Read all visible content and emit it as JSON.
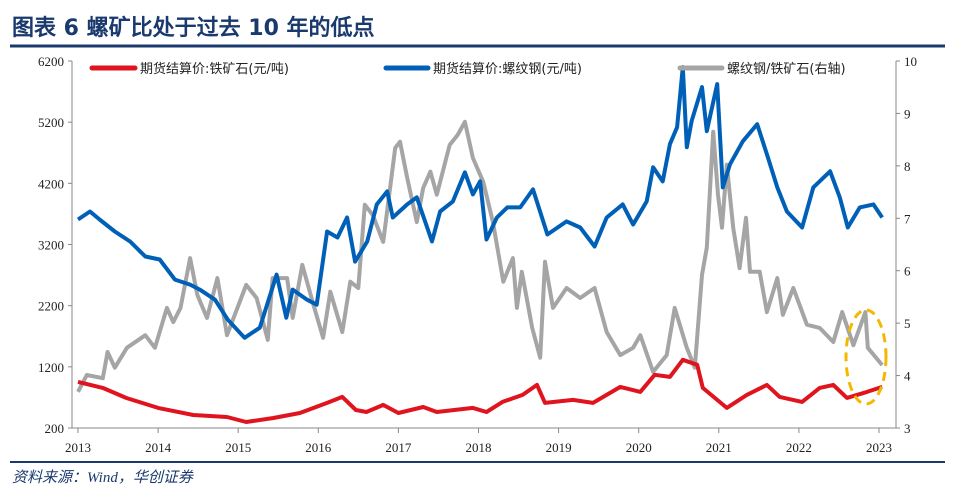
{
  "header": {
    "title": "图表 6  螺矿比处于过去 10 年的低点"
  },
  "footer": {
    "source": "资料来源：Wind，华创证券"
  },
  "colors": {
    "iron_ore": "#e0141e",
    "rebar": "#0060b8",
    "ratio": "#a5a5a5",
    "accent": "#1a3a6e",
    "highlight": "#f5b800"
  },
  "chart_data": {
    "type": "line",
    "title": "螺矿比处于过去 10 年的低点",
    "xlabel": "",
    "ylabel": "",
    "y2label": "",
    "xlim": [
      2013,
      2023
    ],
    "ylim": [
      200,
      6200
    ],
    "y2lim": [
      3,
      10
    ],
    "x_ticks": [
      "2013",
      "2014",
      "2015",
      "2016",
      "2017",
      "2018",
      "2019",
      "2020",
      "2021",
      "2022",
      "2023"
    ],
    "y_ticks": [
      "200",
      "1200",
      "2200",
      "3200",
      "4200",
      "5200",
      "6200"
    ],
    "y2_ticks": [
      "3",
      "4",
      "5",
      "6",
      "7",
      "8",
      "9",
      "10"
    ],
    "legend_position": "top",
    "annotation": "dashed ellipse highlighting latest ratio low",
    "series": [
      {
        "name": "期货结算价:铁矿石(元/吨)",
        "axis": "left",
        "color": "#e0141e",
        "points": [
          [
            2013.0,
            954
          ],
          [
            2013.31,
            856
          ],
          [
            2013.6,
            692
          ],
          [
            2014.0,
            528
          ],
          [
            2014.44,
            413
          ],
          [
            2014.86,
            380
          ],
          [
            2015.1,
            298
          ],
          [
            2015.44,
            364
          ],
          [
            2015.77,
            446
          ],
          [
            2016.11,
            610
          ],
          [
            2016.3,
            708
          ],
          [
            2016.47,
            495
          ],
          [
            2016.6,
            462
          ],
          [
            2016.81,
            577
          ],
          [
            2017.0,
            446
          ],
          [
            2017.31,
            544
          ],
          [
            2017.48,
            462
          ],
          [
            2017.93,
            528
          ],
          [
            2018.1,
            462
          ],
          [
            2018.3,
            626
          ],
          [
            2018.55,
            741
          ],
          [
            2018.73,
            905
          ],
          [
            2018.83,
            610
          ],
          [
            2019.18,
            659
          ],
          [
            2019.43,
            610
          ],
          [
            2019.77,
            872
          ],
          [
            2020.02,
            790
          ],
          [
            2020.2,
            1069
          ],
          [
            2020.39,
            1036
          ],
          [
            2020.55,
            1315
          ],
          [
            2020.73,
            1233
          ],
          [
            2020.8,
            856
          ],
          [
            2021.01,
            626
          ],
          [
            2021.1,
            528
          ],
          [
            2021.35,
            741
          ],
          [
            2021.6,
            905
          ],
          [
            2021.76,
            708
          ],
          [
            2022.04,
            626
          ],
          [
            2022.26,
            856
          ],
          [
            2022.43,
            905
          ],
          [
            2022.6,
            692
          ],
          [
            2022.85,
            790
          ],
          [
            2023.04,
            872
          ]
        ]
      },
      {
        "name": "期货结算价:螺纹钢(元/吨)",
        "axis": "left",
        "color": "#0060b8",
        "points": [
          [
            2013.0,
            3609
          ],
          [
            2013.15,
            3740
          ],
          [
            2013.27,
            3609
          ],
          [
            2013.46,
            3412
          ],
          [
            2013.65,
            3249
          ],
          [
            2013.84,
            3003
          ],
          [
            2014.02,
            2954
          ],
          [
            2014.21,
            2626
          ],
          [
            2014.4,
            2544
          ],
          [
            2014.52,
            2462
          ],
          [
            2014.71,
            2298
          ],
          [
            2014.87,
            1970
          ],
          [
            2015.08,
            1675
          ],
          [
            2015.27,
            1839
          ],
          [
            2015.48,
            2708
          ],
          [
            2015.6,
            2003
          ],
          [
            2015.68,
            2462
          ],
          [
            2015.86,
            2298
          ],
          [
            2015.98,
            2216
          ],
          [
            2016.11,
            3413
          ],
          [
            2016.24,
            3314
          ],
          [
            2016.36,
            3642
          ],
          [
            2016.46,
            2921
          ],
          [
            2016.61,
            3249
          ],
          [
            2016.73,
            3855
          ],
          [
            2016.86,
            4068
          ],
          [
            2016.93,
            3642
          ],
          [
            2017.11,
            3855
          ],
          [
            2017.23,
            3970
          ],
          [
            2017.42,
            3249
          ],
          [
            2017.52,
            3740
          ],
          [
            2017.68,
            3904
          ],
          [
            2017.83,
            4380
          ],
          [
            2017.93,
            4019
          ],
          [
            2018.02,
            4232
          ],
          [
            2018.1,
            3281
          ],
          [
            2018.23,
            3642
          ],
          [
            2018.36,
            3806
          ],
          [
            2018.52,
            3806
          ],
          [
            2018.68,
            4101
          ],
          [
            2018.86,
            3363
          ],
          [
            2019.1,
            3577
          ],
          [
            2019.27,
            3478
          ],
          [
            2019.45,
            3167
          ],
          [
            2019.6,
            3642
          ],
          [
            2019.8,
            3855
          ],
          [
            2019.93,
            3527
          ],
          [
            2020.1,
            3904
          ],
          [
            2020.18,
            4462
          ],
          [
            2020.3,
            4232
          ],
          [
            2020.39,
            4839
          ],
          [
            2020.48,
            5117
          ],
          [
            2020.55,
            6100
          ],
          [
            2020.6,
            4790
          ],
          [
            2020.66,
            5216
          ],
          [
            2020.79,
            5773
          ],
          [
            2020.85,
            5052
          ],
          [
            2020.98,
            5822
          ],
          [
            2021.05,
            4134
          ],
          [
            2021.14,
            4511
          ],
          [
            2021.3,
            4888
          ],
          [
            2021.48,
            5166
          ],
          [
            2021.6,
            4675
          ],
          [
            2021.73,
            4134
          ],
          [
            2021.85,
            3740
          ],
          [
            2022.04,
            3478
          ],
          [
            2022.18,
            4134
          ],
          [
            2022.39,
            4396
          ],
          [
            2022.51,
            3970
          ],
          [
            2022.61,
            3478
          ],
          [
            2022.76,
            3806
          ],
          [
            2022.93,
            3855
          ],
          [
            2023.04,
            3642
          ]
        ]
      },
      {
        "name": "螺纹钢/铁矿石(右轴)",
        "axis": "right",
        "color": "#a5a5a5",
        "points": [
          [
            2013.0,
            3.69
          ],
          [
            2013.11,
            4.01
          ],
          [
            2013.31,
            3.95
          ],
          [
            2013.37,
            4.45
          ],
          [
            2013.46,
            4.15
          ],
          [
            2013.61,
            4.53
          ],
          [
            2013.84,
            4.77
          ],
          [
            2013.96,
            4.53
          ],
          [
            2014.11,
            5.29
          ],
          [
            2014.19,
            5.02
          ],
          [
            2014.28,
            5.29
          ],
          [
            2014.4,
            6.24
          ],
          [
            2014.49,
            5.54
          ],
          [
            2014.61,
            5.1
          ],
          [
            2014.74,
            5.86
          ],
          [
            2014.86,
            4.77
          ],
          [
            2015.1,
            5.73
          ],
          [
            2015.23,
            5.48
          ],
          [
            2015.37,
            4.68
          ],
          [
            2015.43,
            5.86
          ],
          [
            2015.61,
            5.86
          ],
          [
            2015.68,
            5.1
          ],
          [
            2015.8,
            6.11
          ],
          [
            2015.93,
            5.4
          ],
          [
            2016.06,
            4.72
          ],
          [
            2016.15,
            5.6
          ],
          [
            2016.3,
            4.83
          ],
          [
            2016.4,
            5.79
          ],
          [
            2016.5,
            5.67
          ],
          [
            2016.58,
            7.26
          ],
          [
            2016.68,
            7.06
          ],
          [
            2016.81,
            6.55
          ],
          [
            2016.96,
            8.34
          ],
          [
            2017.02,
            8.46
          ],
          [
            2017.11,
            7.77
          ],
          [
            2017.23,
            6.93
          ],
          [
            2017.31,
            7.58
          ],
          [
            2017.4,
            7.89
          ],
          [
            2017.48,
            7.45
          ],
          [
            2017.64,
            8.4
          ],
          [
            2017.74,
            8.59
          ],
          [
            2017.83,
            8.84
          ],
          [
            2017.93,
            8.15
          ],
          [
            2018.06,
            7.69
          ],
          [
            2018.18,
            6.93
          ],
          [
            2018.31,
            5.79
          ],
          [
            2018.43,
            6.24
          ],
          [
            2018.48,
            5.29
          ],
          [
            2018.54,
            5.98
          ],
          [
            2018.67,
            4.91
          ],
          [
            2018.77,
            4.34
          ],
          [
            2018.83,
            6.17
          ],
          [
            2018.93,
            5.29
          ],
          [
            2019.1,
            5.67
          ],
          [
            2019.27,
            5.48
          ],
          [
            2019.45,
            5.67
          ],
          [
            2019.6,
            4.83
          ],
          [
            2019.77,
            4.39
          ],
          [
            2019.93,
            4.53
          ],
          [
            2020.02,
            4.77
          ],
          [
            2020.18,
            4.07
          ],
          [
            2020.35,
            4.39
          ],
          [
            2020.45,
            5.29
          ],
          [
            2020.6,
            4.53
          ],
          [
            2020.7,
            4.15
          ],
          [
            2020.79,
            5.92
          ],
          [
            2020.85,
            6.44
          ],
          [
            2020.93,
            8.65
          ],
          [
            2020.99,
            7.45
          ],
          [
            2021.04,
            6.82
          ],
          [
            2021.1,
            8.02
          ],
          [
            2021.18,
            6.82
          ],
          [
            2021.26,
            6.05
          ],
          [
            2021.34,
            7.01
          ],
          [
            2021.39,
            5.98
          ],
          [
            2021.51,
            5.98
          ],
          [
            2021.6,
            5.21
          ],
          [
            2021.73,
            5.86
          ],
          [
            2021.8,
            5.16
          ],
          [
            2021.93,
            5.67
          ],
          [
            2022.1,
            4.97
          ],
          [
            2022.26,
            4.91
          ],
          [
            2022.43,
            4.64
          ],
          [
            2022.54,
            5.21
          ],
          [
            2022.68,
            4.58
          ],
          [
            2022.83,
            5.21
          ],
          [
            2022.86,
            4.53
          ],
          [
            2023.04,
            4.2
          ]
        ]
      }
    ]
  }
}
